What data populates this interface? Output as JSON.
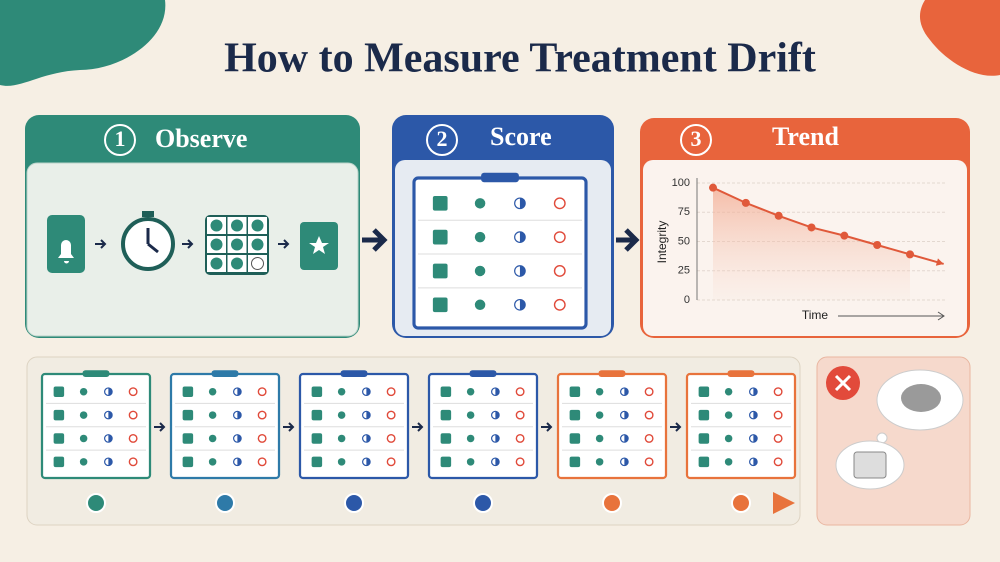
{
  "title": "How to Measure Treatment Drift",
  "steps": [
    {
      "number": "1",
      "label": "Observe"
    },
    {
      "number": "2",
      "label": "Score"
    },
    {
      "number": "3",
      "label": "Trend"
    }
  ],
  "chart_data": {
    "type": "line",
    "categories": [
      null,
      null,
      null,
      null,
      null,
      null,
      null
    ],
    "series": [
      {
        "name": "Integrity",
        "color": "#e0593a",
        "values": [
          96,
          83,
          72,
          62,
          55,
          47,
          39
        ]
      }
    ],
    "ylim": [
      0,
      100
    ],
    "yticks": [
      0,
      25,
      50,
      75,
      100
    ],
    "ylabel": "Integrity",
    "xlabel": "Time",
    "grid": true
  }
}
